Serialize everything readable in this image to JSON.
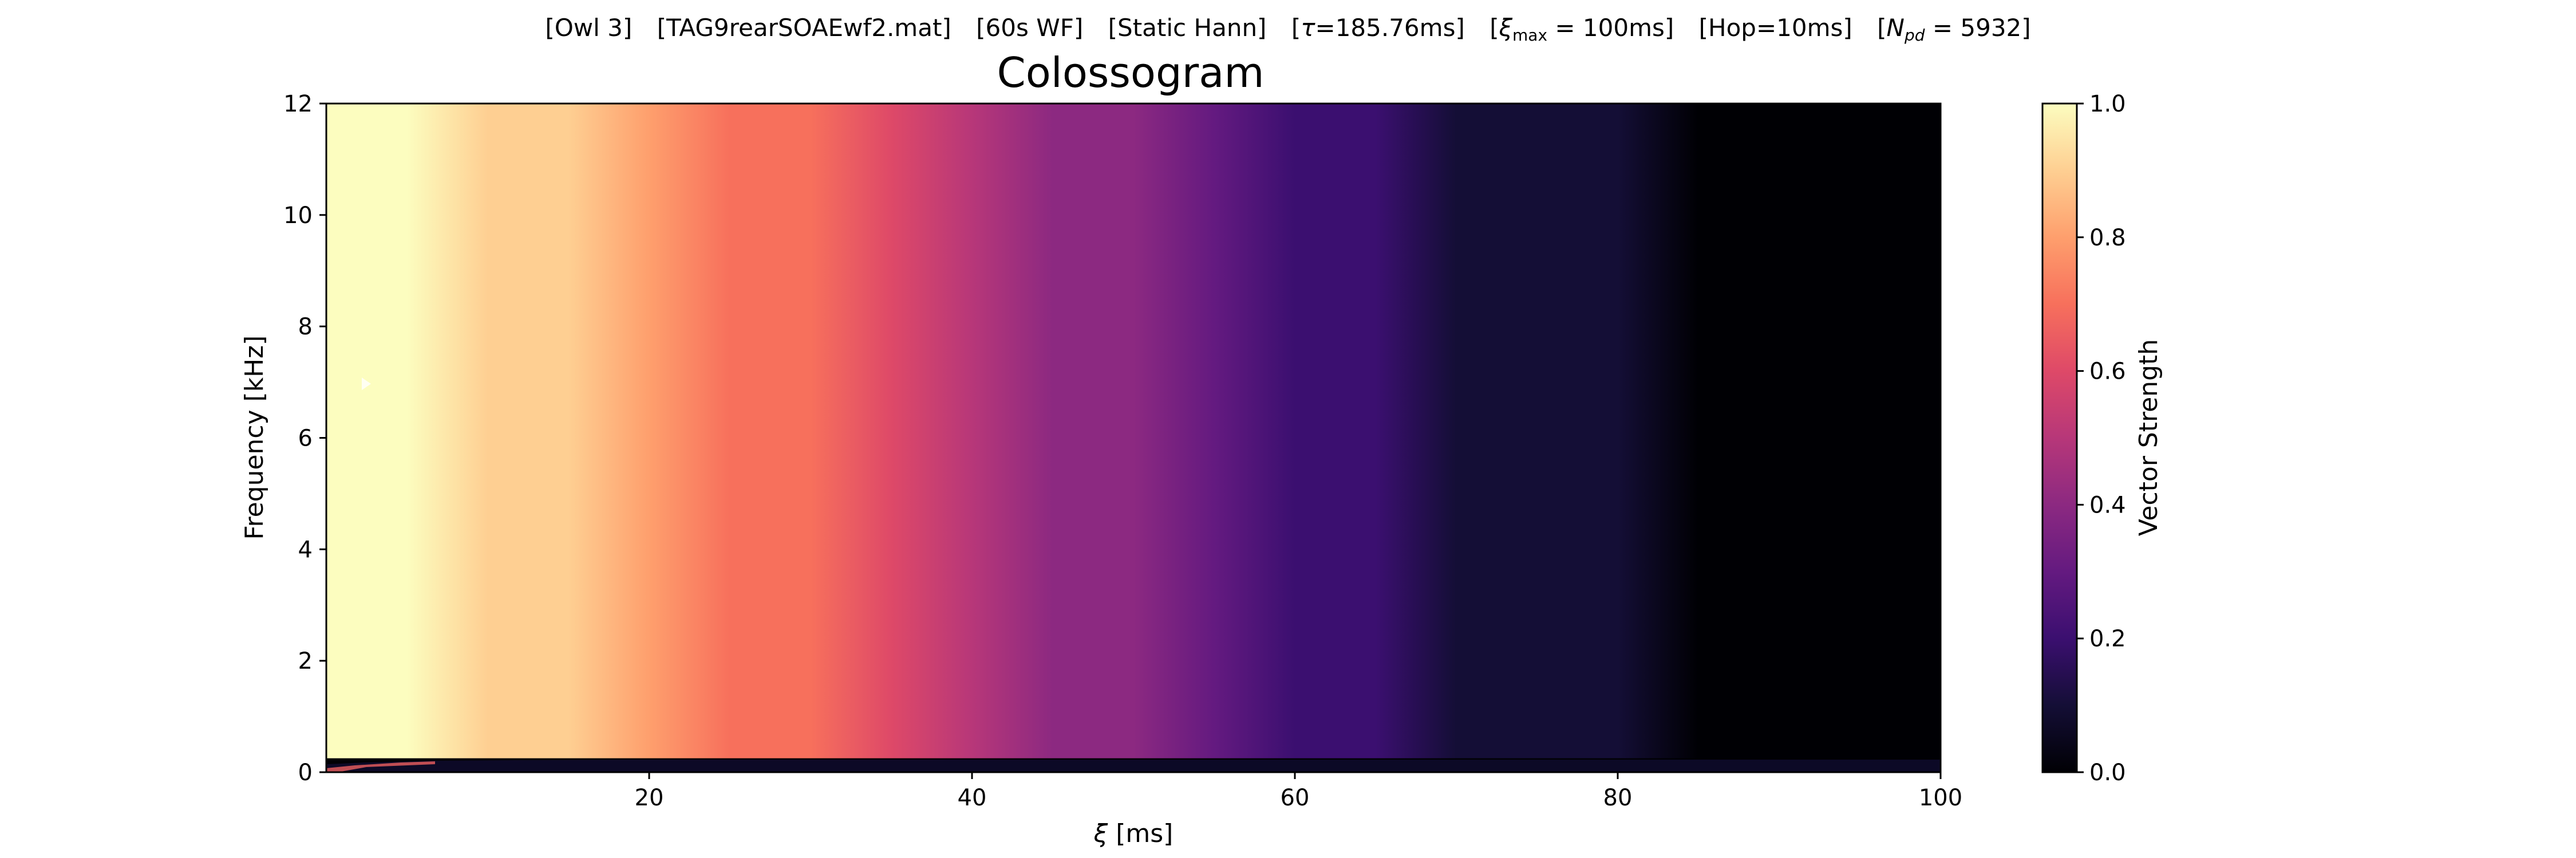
{
  "header": {
    "suptitle_parts": {
      "owl": "[Owl 3]",
      "file": "[TAG9rearSOAEwf2.mat]",
      "wf": "[60s WF]",
      "window": "[Static Hann]",
      "tau_open": "[",
      "tau_sym": "τ",
      "tau_val": "=185.76ms]",
      "xi_open": "[",
      "xi_sym": "ξ",
      "xi_sub": "max",
      "xi_val": " = 100ms]",
      "hop": "[Hop=10ms]",
      "npd_open": "[",
      "npd_sym": "N",
      "npd_sub": "pd",
      "npd_val": " = 5932]"
    }
  },
  "chart_data": {
    "type": "heatmap",
    "title": "Colossogram",
    "xlabel_sym": "ξ",
    "xlabel_unit": " [ms]",
    "ylabel": "Frequency [kHz]",
    "colorbar_label": "Vector Strength",
    "colormap": "magma",
    "xlim": [
      0,
      100
    ],
    "ylim": [
      0,
      12
    ],
    "clim": [
      0,
      1
    ],
    "x_ticks": [
      20,
      40,
      60,
      80,
      100
    ],
    "x_tick_labels": [
      "20",
      "40",
      "60",
      "80",
      "100"
    ],
    "y_ticks": [
      0,
      2,
      4,
      6,
      8,
      10,
      12
    ],
    "y_tick_labels": [
      "0",
      "2",
      "4",
      "6",
      "8",
      "10",
      "12"
    ],
    "cbar_ticks": [
      0.0,
      0.2,
      0.4,
      0.6,
      0.8,
      1.0
    ],
    "cbar_tick_labels": [
      "0.0",
      "0.2",
      "0.4",
      "0.6",
      "0.8",
      "1.0"
    ],
    "low_freq_band_khz": 0.25,
    "vs_decay_profile": {
      "xi_ms": [
        0,
        5,
        10,
        15,
        20,
        25,
        30,
        35,
        40,
        45,
        50,
        55,
        60,
        65,
        70,
        75,
        80,
        85,
        90,
        95,
        100
      ],
      "vector_strength": [
        1.0,
        0.98,
        0.94,
        0.88,
        0.81,
        0.73,
        0.65,
        0.57,
        0.49,
        0.42,
        0.35,
        0.28,
        0.22,
        0.17,
        0.12,
        0.08,
        0.05,
        0.03,
        0.02,
        0.01,
        0.01
      ]
    }
  }
}
